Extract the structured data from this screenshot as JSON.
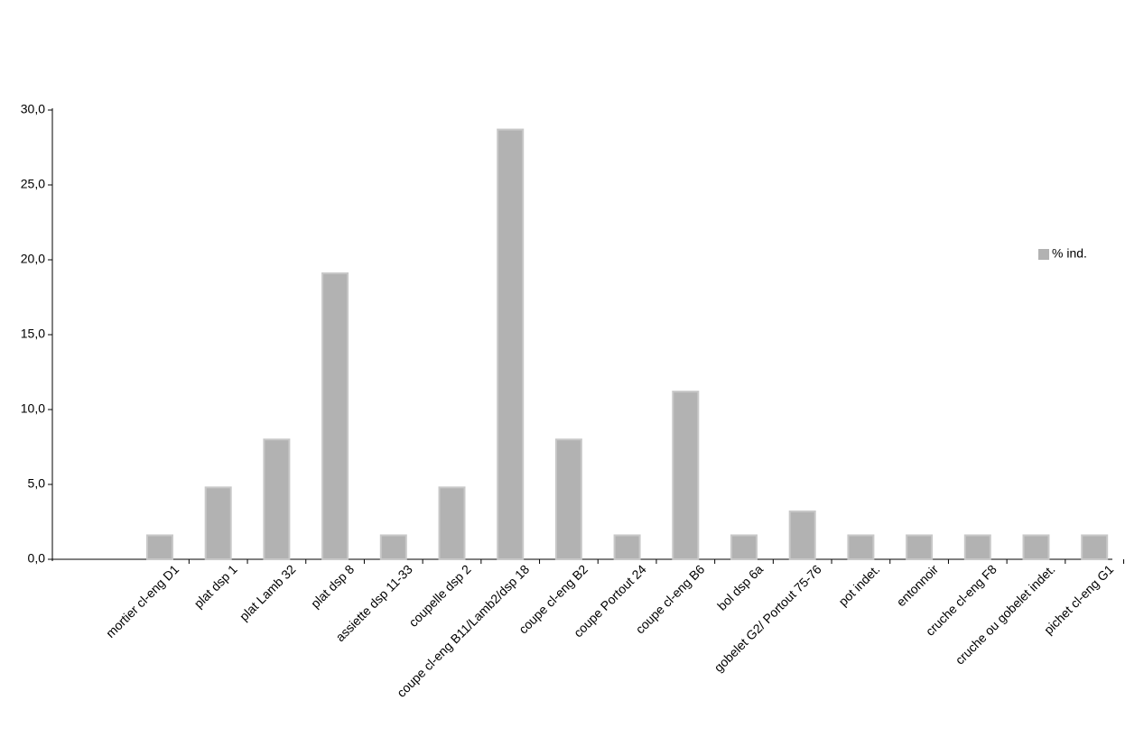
{
  "chart_data": {
    "type": "bar",
    "categories": [
      "mortier cl-eng D1",
      "plat dsp 1",
      "plat Lamb 32",
      "plat dsp 8",
      "assiette dsp 11-33",
      "coupelle dsp 2",
      "coupe cl-eng B11/Lamb2/dsp 18",
      "coupe cl-eng B2",
      "coupe Portout 24",
      "coupe cl-eng B6",
      "bol dsp 6a",
      "gobelet G2/ Portout 75-76",
      "pot indet.",
      "entonnoir",
      "cruche cl-eng F8",
      "cruche ou gobelet indet.",
      "pichet cl-eng G1"
    ],
    "series": [
      {
        "name": "% ind.",
        "color": "#b2b2b2",
        "values": [
          1.6,
          4.8,
          8.0,
          19.1,
          1.6,
          4.8,
          28.7,
          8.0,
          1.6,
          11.2,
          1.6,
          3.2,
          1.6,
          1.6,
          1.6,
          1.6,
          1.6
        ]
      }
    ],
    "ylim": [
      0,
      30
    ],
    "yticks": [
      {
        "value": 0,
        "label": "0,0"
      },
      {
        "value": 5,
        "label": "5,0"
      },
      {
        "value": 10,
        "label": "10,0"
      },
      {
        "value": 15,
        "label": "15,0"
      },
      {
        "value": 20,
        "label": "20,0"
      },
      {
        "value": 25,
        "label": "25,0"
      },
      {
        "value": 30,
        "label": "30,0"
      }
    ],
    "legend": "right"
  }
}
